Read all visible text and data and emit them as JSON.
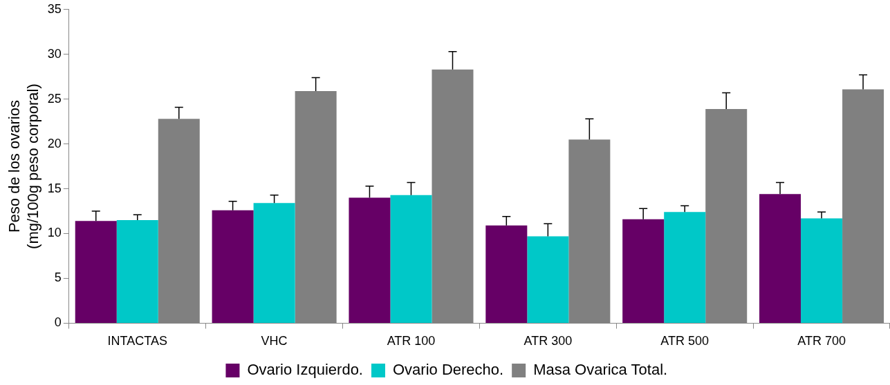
{
  "chart_data": {
    "type": "bar",
    "ylabel": "Peso de los ovarios\n(mg/100g peso corporal)",
    "categories": [
      "INTACTAS",
      "VHC",
      "ATR 100",
      "ATR 300",
      "ATR 500",
      "ATR 700"
    ],
    "series": [
      {
        "name": "Ovario Izquierdo.",
        "color": "#660066",
        "values": [
          11.4,
          12.6,
          14.0,
          10.9,
          11.6,
          14.4
        ],
        "errors": [
          [
            11.4,
            12.5
          ],
          [
            12.6,
            13.6
          ],
          [
            14.0,
            15.3
          ],
          [
            10.9,
            11.9
          ],
          [
            11.6,
            12.8
          ],
          [
            14.4,
            15.7
          ]
        ]
      },
      {
        "name": "Ovario Derecho.",
        "color": "#00c8c8",
        "values": [
          11.5,
          13.4,
          14.3,
          9.7,
          12.4,
          11.7
        ],
        "errors": [
          [
            11.5,
            12.1
          ],
          [
            13.4,
            14.3
          ],
          [
            14.3,
            15.7
          ],
          [
            9.7,
            11.1
          ],
          [
            12.4,
            13.1
          ],
          [
            11.7,
            12.4
          ]
        ]
      },
      {
        "name": "Masa Ovarica Total.",
        "color": "#808080",
        "values": [
          22.8,
          25.9,
          28.3,
          20.5,
          23.9,
          26.1
        ],
        "errors": [
          [
            22.8,
            24.1
          ],
          [
            25.9,
            27.4
          ],
          [
            28.3,
            30.3
          ],
          [
            20.5,
            22.8
          ],
          [
            23.9,
            25.7
          ],
          [
            26.1,
            27.7
          ]
        ]
      }
    ],
    "ylim": [
      0,
      35
    ],
    "yticks": [
      0,
      5,
      10,
      15,
      20,
      25,
      30,
      35
    ],
    "grid": false,
    "legend": "bottom"
  }
}
